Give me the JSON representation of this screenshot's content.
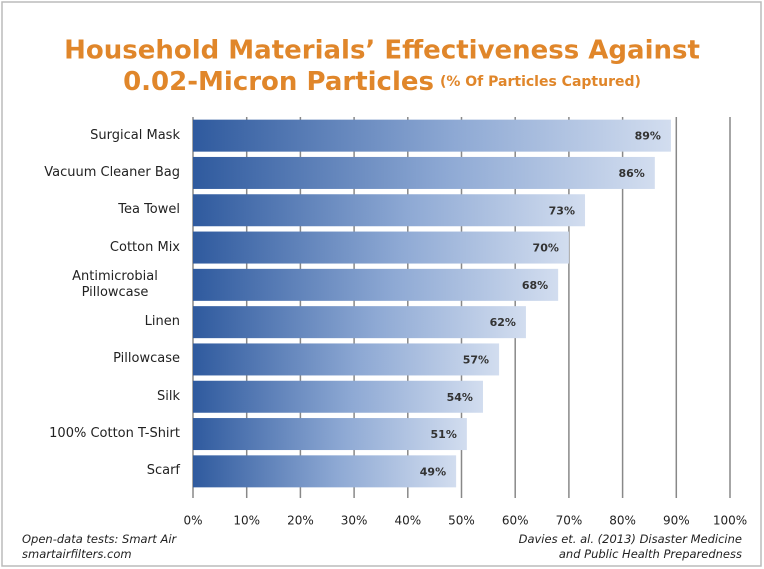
{
  "chart_data": {
    "type": "bar",
    "orientation": "horizontal",
    "title": "Household Materials’ Effectiveness Against",
    "title_line2": "0.02-Micron Particles",
    "subtitle": "(% Of Particles Captured)",
    "categories": [
      "Surgical Mask",
      "Vacuum Cleaner Bag",
      "Tea Towel",
      "Cotton Mix",
      "Antimicrobial Pillowcase",
      "Linen",
      "Pillowcase",
      "Silk",
      "100% Cotton T-Shirt",
      "Scarf"
    ],
    "values": [
      89,
      86,
      73,
      70,
      68,
      62,
      57,
      54,
      51,
      49
    ],
    "value_labels": [
      "89%",
      "86%",
      "73%",
      "70%",
      "68%",
      "62%",
      "57%",
      "54%",
      "51%",
      "49%"
    ],
    "xlim": [
      0,
      100
    ],
    "xticks": [
      {
        "value": 0,
        "label": "0%"
      },
      {
        "value": 10,
        "label": "10%"
      },
      {
        "value": 20,
        "label": "20%"
      },
      {
        "value": 30,
        "label": "30%"
      },
      {
        "value": 40,
        "label": "40%"
      },
      {
        "value": 50,
        "label": "50%"
      },
      {
        "value": 60,
        "label": "60%"
      },
      {
        "value": 70,
        "label": "70%"
      },
      {
        "value": 80,
        "label": "80%"
      },
      {
        "value": 90,
        "label": "90%"
      },
      {
        "value": 100,
        "label": "100%"
      }
    ],
    "grid": true,
    "notes_left": [
      "Open-data tests: Smart Air",
      "smartairfilters.com"
    ],
    "notes_right": [
      "Davies et. al. (2013) Disaster Medicine",
      "and Public Health Preparedness"
    ]
  }
}
